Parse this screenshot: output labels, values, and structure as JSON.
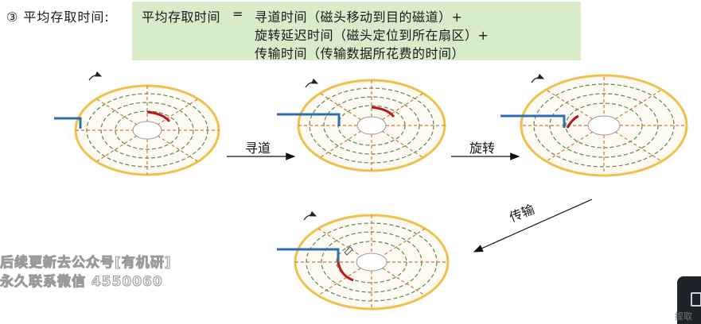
{
  "heading": "③ 平均存取时间:",
  "formula": {
    "lhs": "平均存取时间",
    "equals": "=",
    "term1": "寻道时间（磁头移动到目的磁道）+",
    "term2": "旋转延迟时间（磁头定位到所在扇区）+",
    "term3": "传输时间（传输数据所花费的时间）"
  },
  "steps": {
    "seek": "寻道",
    "rotate": "旋转",
    "transfer": "传输"
  },
  "watermark": {
    "line1": "后续更新去公众号[有机研]",
    "line2": "永久联系微信 4550060"
  },
  "colors": {
    "formula_bg": "#d9ecc9",
    "platter_fill": "#fdfaf4",
    "platter_edge": "#f0c04a",
    "track": "#5b8a4a",
    "sector_line": "#c87a3a",
    "arm": "#2f6db3",
    "target_sector": "#c0141b"
  },
  "corner": {
    "partial_label": "提取"
  }
}
